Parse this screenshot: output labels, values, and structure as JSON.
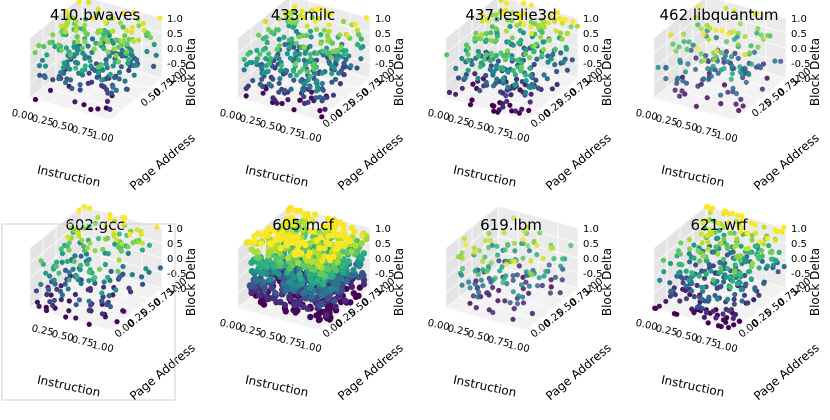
{
  "chart_data": [
    {
      "type": "scatter",
      "subtype": "3d",
      "title": "410.bwaves",
      "xlabel": "Instruction",
      "ylabel": "Page Address",
      "zlabel": "Block Delta",
      "xticks": [
        "0.00",
        "0.25",
        "0.50",
        "0.75",
        "1.00"
      ],
      "yticks": [
        "0.50",
        "0.75",
        "1.00"
      ],
      "zticks": [
        "1.0",
        "0.5",
        "0.0",
        "-0.5",
        "-1.0"
      ],
      "xlim": [
        0,
        1
      ],
      "ylim": [
        0,
        1
      ],
      "zlim": [
        -1,
        1
      ],
      "colormap": "viridis",
      "n_points": 260,
      "seed": 11,
      "pattern": "scattered"
    },
    {
      "type": "scatter",
      "subtype": "3d",
      "title": "433.milc",
      "xlabel": "Instruction",
      "ylabel": "Page Address",
      "zlabel": "Block Delta",
      "xticks": [
        "0.00",
        "0.25",
        "0.50",
        "0.75",
        "1.00"
      ],
      "yticks": [
        "0.00",
        "0.25",
        "0.50",
        "0.75",
        "1.00"
      ],
      "zticks": [
        "1.0",
        "0.5",
        "0.0",
        "-0.5",
        "-1.0"
      ],
      "xlim": [
        0,
        1
      ],
      "ylim": [
        0,
        1
      ],
      "zlim": [
        -1,
        1
      ],
      "colormap": "viridis",
      "n_points": 320,
      "seed": 23,
      "pattern": "scattered"
    },
    {
      "type": "scatter",
      "subtype": "3d",
      "title": "437.leslie3d",
      "xlabel": "Instruction",
      "ylabel": "Page Address",
      "zlabel": "Block Delta",
      "xticks": [
        "0.00",
        "0.25",
        "0.50",
        "0.75",
        "1.00"
      ],
      "yticks": [
        "0.00",
        "0.25",
        "0.50",
        "0.75",
        "1.00"
      ],
      "zticks": [
        "1.0",
        "0.5",
        "0.0",
        "-0.5",
        "-1.0"
      ],
      "xlim": [
        0,
        1
      ],
      "ylim": [
        0,
        1
      ],
      "zlim": [
        -1,
        1
      ],
      "colormap": "viridis",
      "n_points": 280,
      "seed": 37,
      "pattern": "rows"
    },
    {
      "type": "scatter",
      "subtype": "3d",
      "title": "462.libquantum",
      "xlabel": "Instruction",
      "ylabel": "Page Address",
      "zlabel": "Block Delta",
      "xticks": [
        "0.00",
        "0.25",
        "0.50",
        "0.75",
        "1.00"
      ],
      "yticks": [
        "0.25",
        "0.50",
        "0.75",
        "1.00"
      ],
      "zticks": [
        "1.0",
        "0.5",
        "0.0",
        "-0.5",
        "-1.0"
      ],
      "xlim": [
        0,
        1
      ],
      "ylim": [
        0,
        1
      ],
      "zlim": [
        -1,
        1
      ],
      "colormap": "viridis",
      "n_points": 150,
      "seed": 41,
      "pattern": "sparse"
    },
    {
      "type": "scatter",
      "subtype": "3d",
      "title": "602.gcc",
      "xlabel": "Instruction",
      "ylabel": "Page Address",
      "zlabel": "Block Delta",
      "xticks": [
        "0.25",
        "0.50",
        "0.75",
        "1.00"
      ],
      "yticks": [
        "0.00",
        "0.25",
        "0.50",
        "0.75",
        "1.00"
      ],
      "zticks": [
        "1.0",
        "0.5",
        "0.0",
        "-0.5",
        "-1.0"
      ],
      "xlim": [
        0,
        1
      ],
      "ylim": [
        0,
        1
      ],
      "zlim": [
        -1,
        1
      ],
      "colormap": "viridis",
      "n_points": 200,
      "seed": 53,
      "pattern": "rows"
    },
    {
      "type": "scatter",
      "subtype": "3d",
      "title": "605.mcf",
      "xlabel": "Instruction",
      "ylabel": "Page Address",
      "zlabel": "Block Delta",
      "xticks": [
        "0.00",
        "0.25",
        "0.50",
        "0.75",
        "1.00"
      ],
      "yticks": [
        "0.00",
        "0.25",
        "0.50",
        "0.75",
        "1.00"
      ],
      "zticks": [
        "1.0",
        "0.5",
        "0.0",
        "-0.5",
        "-1.0"
      ],
      "xlim": [
        0,
        1
      ],
      "ylim": [
        0,
        1
      ],
      "zlim": [
        -1,
        1
      ],
      "colormap": "viridis",
      "n_points": 900,
      "seed": 67,
      "pattern": "bands"
    },
    {
      "type": "scatter",
      "subtype": "3d",
      "title": "619.lbm",
      "xlabel": "Instruction",
      "ylabel": "Page Address",
      "zlabel": "Block Delta",
      "xticks": [
        "0.00",
        "0.25",
        "0.50",
        "0.75",
        "1.00"
      ],
      "yticks": [
        "0.00",
        "0.25",
        "0.50",
        "0.75",
        "1.00"
      ],
      "zticks": [
        "1.0",
        "0.5",
        "0.0",
        "-0.5",
        "-1.0"
      ],
      "xlim": [
        0,
        1
      ],
      "ylim": [
        0,
        1
      ],
      "zlim": [
        -1,
        1
      ],
      "colormap": "viridis",
      "n_points": 150,
      "seed": 79,
      "pattern": "sparse"
    },
    {
      "type": "scatter",
      "subtype": "3d",
      "title": "621.wrf",
      "xlabel": "Instruction",
      "ylabel": "Page Address",
      "zlabel": "Block Delta",
      "xticks": [
        "0.00",
        "0.25",
        "0.50",
        "0.75",
        "1.00"
      ],
      "yticks": [
        "0.00",
        "0.25",
        "0.50",
        "0.75",
        "1.00"
      ],
      "zticks": [
        "1.0",
        "0.5",
        "0.0",
        "-0.5",
        "-1.0"
      ],
      "xlim": [
        0,
        1
      ],
      "ylim": [
        0,
        1
      ],
      "zlim": [
        -1,
        1
      ],
      "colormap": "viridis",
      "n_points": 340,
      "seed": 97,
      "pattern": "rows"
    }
  ]
}
